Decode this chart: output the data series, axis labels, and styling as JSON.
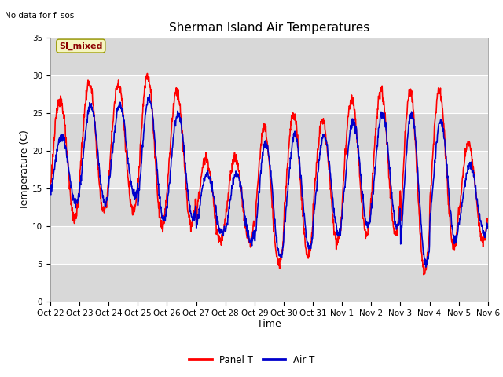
{
  "title": "Sherman Island Air Temperatures",
  "top_left_text": "No data for f_sos",
  "box_label": "SI_mixed",
  "xlabel": "Time",
  "ylabel": "Temperature (C)",
  "ylim": [
    0,
    35
  ],
  "yticks": [
    0,
    5,
    10,
    15,
    20,
    25,
    30,
    35
  ],
  "x_tick_labels": [
    "Oct 22",
    "Oct 23",
    "Oct 24",
    "Oct 25",
    "Oct 26",
    "Oct 27",
    "Oct 28",
    "Oct 29",
    "Oct 30",
    "Oct 31",
    "Nov 1",
    "Nov 2",
    "Nov 3",
    "Nov 4",
    "Nov 5",
    "Nov 6"
  ],
  "panel_t_color": "#ff0000",
  "air_t_color": "#0000cc",
  "legend_labels": [
    "Panel T",
    "Air T"
  ],
  "background_color": "#ffffff",
  "plot_bg_color": "#e8e8e8",
  "grid_color": "#ffffff",
  "title_fontsize": 11,
  "axis_label_fontsize": 9,
  "tick_fontsize": 7.5,
  "line_width": 1.2,
  "panel_peaks": [
    27,
    29,
    29,
    30,
    28,
    19,
    19,
    23,
    25,
    24,
    27,
    28,
    28,
    28,
    21,
    10
  ],
  "panel_troughs": [
    11,
    12,
    12,
    10,
    10,
    8,
    8,
    5,
    6,
    8,
    9,
    9,
    4,
    7,
    8,
    8
  ],
  "air_peaks": [
    22,
    26,
    26,
    27,
    25,
    17,
    17,
    21,
    22,
    22,
    24,
    25,
    25,
    24,
    18,
    11
  ],
  "air_troughs": [
    13,
    13,
    14,
    11,
    11,
    9,
    8,
    6,
    7,
    9,
    10,
    10,
    5,
    8,
    9,
    9
  ],
  "n_days": 15,
  "n_per_day": 96,
  "noise_seed": 123,
  "panel_noise": 0.4,
  "air_noise": 0.3
}
